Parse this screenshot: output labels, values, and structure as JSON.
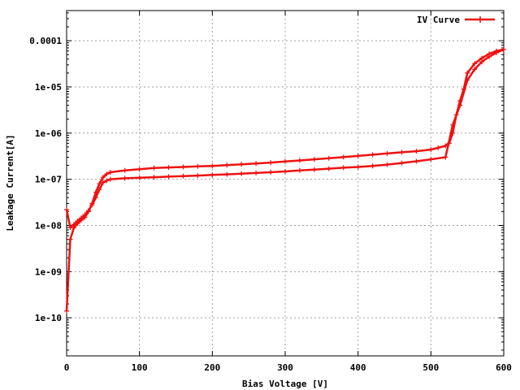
{
  "chart_data": {
    "type": "line",
    "title": "",
    "xlabel": "Bias Voltage [V]",
    "ylabel": "Leakage Current[A]",
    "xlim": [
      0,
      600
    ],
    "ylim": [
      1.5e-11,
      0.00045
    ],
    "yscale": "log",
    "grid": true,
    "legend_position": "top-right",
    "x_ticks": [
      {
        "value": 0,
        "label": "0"
      },
      {
        "value": 100,
        "label": "100"
      },
      {
        "value": 200,
        "label": "200"
      },
      {
        "value": 300,
        "label": "300"
      },
      {
        "value": 400,
        "label": "400"
      },
      {
        "value": 500,
        "label": "500"
      },
      {
        "value": 600,
        "label": "600"
      }
    ],
    "y_ticks": [
      {
        "value": 1e-10,
        "label": "1e-10"
      },
      {
        "value": 1e-09,
        "label": "1e-09"
      },
      {
        "value": 1e-08,
        "label": "1e-08"
      },
      {
        "value": 1e-07,
        "label": "1e-07"
      },
      {
        "value": 1e-06,
        "label": "1e-06"
      },
      {
        "value": 1e-05,
        "label": "1e-05"
      },
      {
        "value": 0.0001,
        "label": "0.0001"
      }
    ],
    "series": [
      {
        "name": "IV Curve",
        "color": "#ee1111",
        "x": [
          0,
          5,
          10,
          15,
          20,
          25,
          30,
          35,
          40,
          45,
          50,
          55,
          60,
          80,
          100,
          120,
          140,
          160,
          180,
          200,
          220,
          240,
          260,
          280,
          300,
          320,
          340,
          360,
          380,
          400,
          420,
          440,
          460,
          480,
          500,
          510,
          520,
          525,
          530,
          535,
          540,
          545,
          550,
          560,
          570,
          580,
          590,
          600,
          590,
          580,
          570,
          560,
          550,
          540,
          530,
          520,
          500,
          480,
          460,
          440,
          420,
          400,
          380,
          360,
          340,
          320,
          300,
          280,
          260,
          240,
          220,
          200,
          180,
          160,
          140,
          120,
          100,
          80,
          60,
          55,
          50,
          45,
          40,
          35,
          30,
          25,
          20,
          15,
          10,
          5,
          0
        ],
        "y": [
          1.4e-10,
          5e-09,
          9e-09,
          1.1e-08,
          1.3e-08,
          1.5e-08,
          2e-08,
          3e-08,
          5.2e-08,
          8e-08,
          1.1e-07,
          1.3e-07,
          1.42e-07,
          1.55e-07,
          1.65e-07,
          1.75e-07,
          1.8e-07,
          1.85e-07,
          1.9e-07,
          1.95e-07,
          2.02e-07,
          2.1e-07,
          2.2e-07,
          2.3e-07,
          2.42e-07,
          2.55e-07,
          2.7e-07,
          2.85e-07,
          3.02e-07,
          3.2e-07,
          3.4e-07,
          3.62e-07,
          3.85e-07,
          4.05e-07,
          4.4e-07,
          4.8e-07,
          5.3e-07,
          6e-07,
          1e-06,
          2.5e-06,
          5e-06,
          9e-06,
          2e-05,
          3.2e-05,
          4.2e-05,
          5.2e-05,
          6e-05,
          6.5e-05,
          5.5e-05,
          4.5e-05,
          3.5e-05,
          2.4e-05,
          1.4e-05,
          4e-06,
          1.5e-06,
          3e-07,
          2.7e-07,
          2.45e-07,
          2.25e-07,
          2.08e-07,
          1.95e-07,
          1.85e-07,
          1.78e-07,
          1.7e-07,
          1.62e-07,
          1.55e-07,
          1.48e-07,
          1.42e-07,
          1.37e-07,
          1.32e-07,
          1.28e-07,
          1.24e-07,
          1.2e-07,
          1.17e-07,
          1.14e-07,
          1.11e-07,
          1.08e-07,
          1.05e-07,
          1e-07,
          9.3e-08,
          8.5e-08,
          6e-08,
          4e-08,
          2.8e-08,
          2.1e-08,
          1.7e-08,
          1.45e-08,
          1.25e-08,
          1.05e-08,
          9e-09,
          2.2e-08
        ]
      }
    ]
  }
}
